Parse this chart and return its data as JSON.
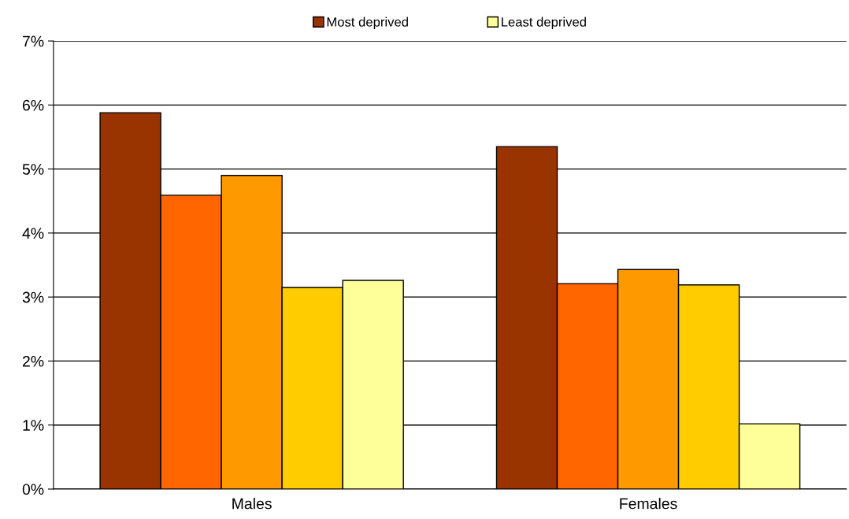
{
  "chart_data": {
    "type": "bar",
    "categories": [
      "Males",
      "Females"
    ],
    "series": [
      {
        "name": "Most deprived",
        "color": "#993300",
        "values": [
          5.88,
          5.35
        ]
      },
      {
        "color": "#ff6600",
        "values": [
          4.59,
          3.21
        ]
      },
      {
        "color": "#ff9900",
        "values": [
          4.9,
          3.43
        ]
      },
      {
        "color": "#ffcc00",
        "values": [
          3.15,
          3.19
        ]
      },
      {
        "name": "Least deprived",
        "color": "#ffff99",
        "values": [
          3.26,
          1.02
        ]
      }
    ],
    "ylim": [
      0,
      7
    ],
    "yticks": [
      {
        "value": 0,
        "label": "0%"
      },
      {
        "value": 1,
        "label": "1%"
      },
      {
        "value": 2,
        "label": "2%"
      },
      {
        "value": 3,
        "label": "3%"
      },
      {
        "value": 4,
        "label": "4%"
      },
      {
        "value": 5,
        "label": "5%"
      },
      {
        "value": 6,
        "label": "6%"
      },
      {
        "value": 7,
        "label": "7%"
      }
    ],
    "grid": "y",
    "legend": "top"
  }
}
